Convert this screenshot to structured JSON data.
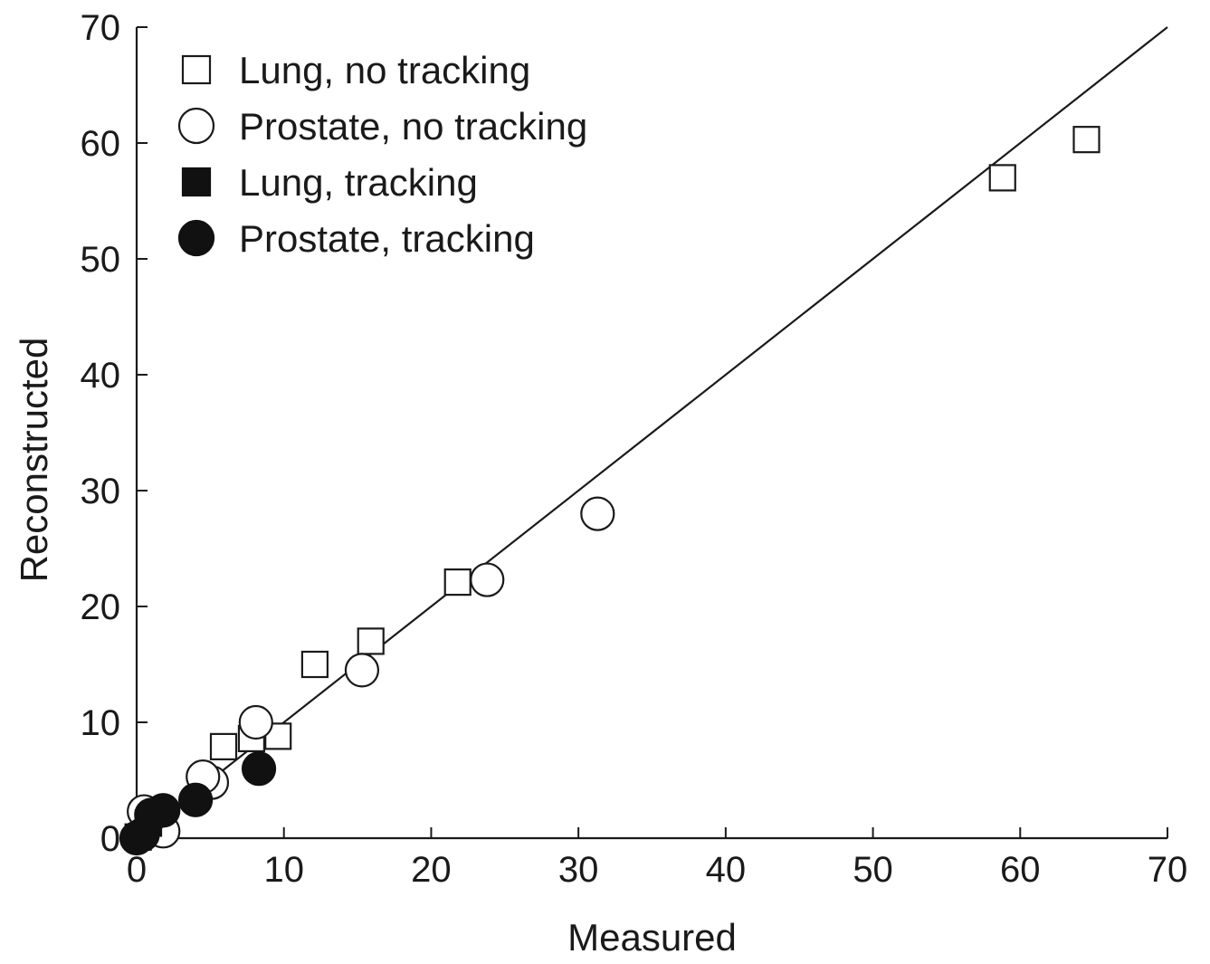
{
  "chart_data": {
    "type": "scatter",
    "title": "",
    "xlabel": "Measured",
    "ylabel": "Reconstructed",
    "xlim": [
      0,
      70
    ],
    "ylim": [
      0,
      70
    ],
    "xticks": [
      0,
      10,
      20,
      30,
      40,
      50,
      60,
      70
    ],
    "yticks": [
      0,
      10,
      20,
      30,
      40,
      50,
      60,
      70
    ],
    "xtick_labels": [
      "0",
      "10",
      "20",
      "30",
      "40",
      "50",
      "60",
      "70"
    ],
    "ytick_labels": [
      "0",
      "10",
      "20",
      "30",
      "40",
      "50",
      "60",
      "70"
    ],
    "grid": false,
    "legend_position": "top-left",
    "reference_line": {
      "label": "",
      "points": [
        [
          0,
          0
        ],
        [
          70,
          70
        ]
      ]
    },
    "series": [
      {
        "name": "Lung, no tracking",
        "marker": "square",
        "filled": false,
        "color": "#1a1a1a",
        "points": [
          [
            5.9,
            7.9
          ],
          [
            7.8,
            8.6
          ],
          [
            9.6,
            8.8
          ],
          [
            12.1,
            15.0
          ],
          [
            15.9,
            17.0
          ],
          [
            21.8,
            22.1
          ],
          [
            58.8,
            57.0
          ],
          [
            64.5,
            60.3
          ]
        ]
      },
      {
        "name": "Prostate, no tracking",
        "marker": "circle",
        "filled": false,
        "color": "#1a1a1a",
        "points": [
          [
            0.5,
            2.3
          ],
          [
            1.8,
            0.6
          ],
          [
            5.1,
            4.8
          ],
          [
            4.5,
            5.3
          ],
          [
            8.1,
            10.0
          ],
          [
            15.3,
            14.5
          ],
          [
            23.8,
            22.3
          ],
          [
            31.3,
            28.0
          ]
        ]
      },
      {
        "name": "Lung, tracking",
        "marker": "square",
        "filled": true,
        "color": "#111111",
        "points": [
          [
            0.1,
            0.1
          ],
          [
            0.8,
            1.3
          ]
        ]
      },
      {
        "name": "Prostate, tracking",
        "marker": "circle",
        "filled": true,
        "color": "#111111",
        "points": [
          [
            0.0,
            0.0
          ],
          [
            0.4,
            0.3
          ],
          [
            1.0,
            2.0
          ],
          [
            1.8,
            2.4
          ],
          [
            4.0,
            3.3
          ],
          [
            8.3,
            6.0
          ]
        ]
      }
    ]
  }
}
